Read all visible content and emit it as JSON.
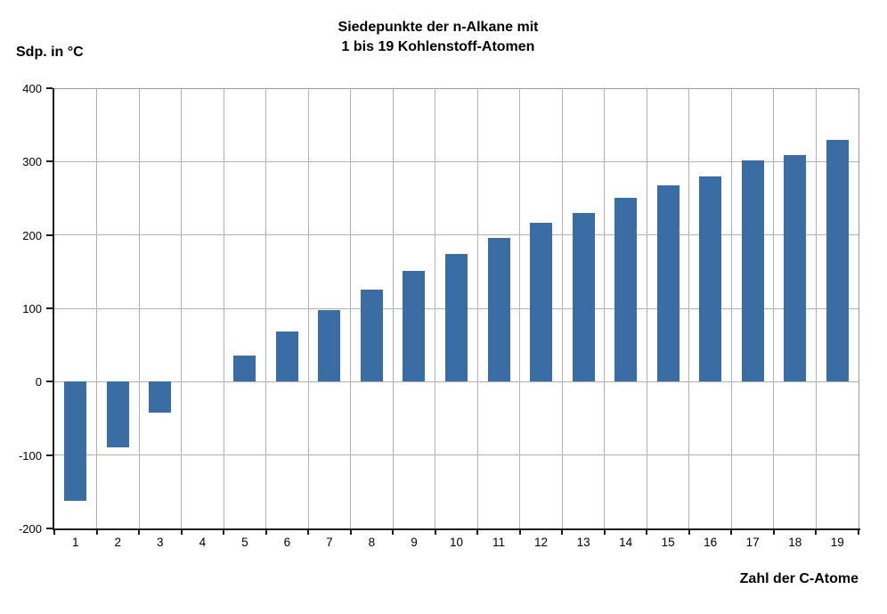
{
  "title": {
    "line1": "Siedepunkte der n-Alkane mit",
    "line2": "1 bis 19 Kohlenstoff-Atomen"
  },
  "y_axis_title": "Sdp. in °C",
  "x_axis_title": "Zahl der C-Atome",
  "chart_data": {
    "type": "bar",
    "title": "Siedepunkte der n-Alkane mit 1 bis 19 Kohlenstoff-Atomen",
    "xlabel": "Zahl der C-Atome",
    "ylabel": "Sdp. in °C",
    "categories": [
      1,
      2,
      3,
      4,
      5,
      6,
      7,
      8,
      9,
      10,
      11,
      12,
      13,
      14,
      15,
      16,
      17,
      18,
      19
    ],
    "values": [
      -162,
      -89,
      -42,
      -0.5,
      36,
      69,
      98,
      126,
      151,
      174,
      196,
      216,
      230,
      251,
      268,
      280,
      302,
      309,
      330
    ],
    "ylim": [
      -200,
      400
    ],
    "y_ticks": [
      400,
      300,
      200,
      100,
      0,
      -100,
      -200
    ],
    "grid": true,
    "legend": "none",
    "bar_color": "#3A6DA4",
    "gridline_color": "#b2b2b2",
    "border_color": "#9a9a9a",
    "axis_color": "#1c1c1c",
    "text_color": "#000000",
    "background_color": "#ffffff"
  }
}
